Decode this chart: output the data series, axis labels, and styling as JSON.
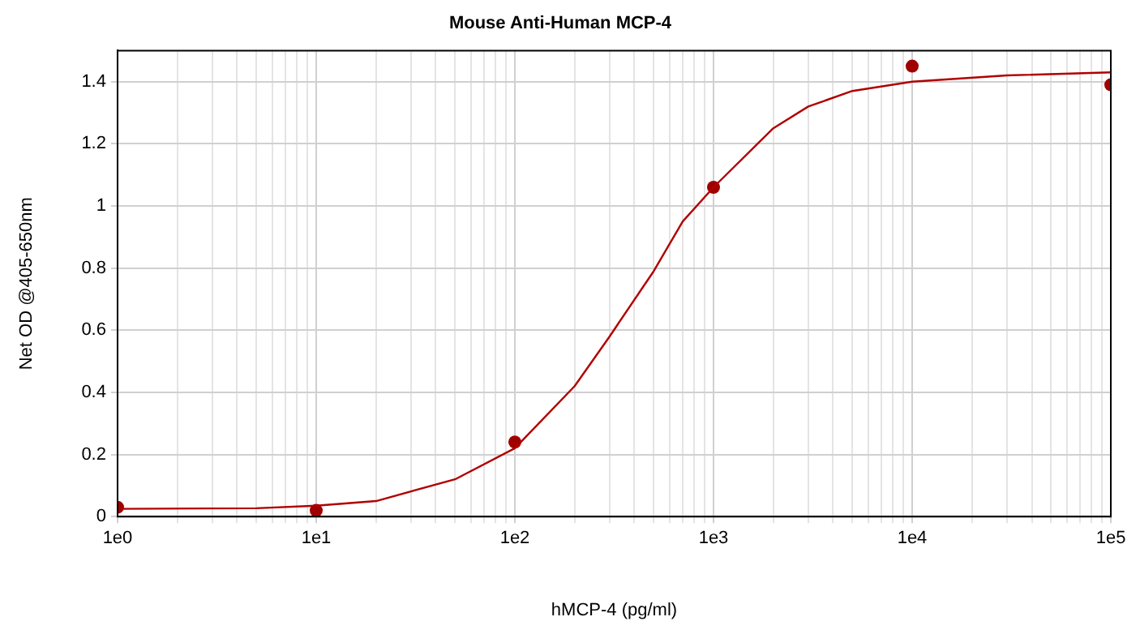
{
  "chart_data": {
    "type": "scatter",
    "title": "Mouse Anti-Human MCP-4",
    "xlabel": "hMCP-4 (pg/ml)",
    "ylabel": "Net OD @405-650nm",
    "log": "x",
    "grid": true,
    "legend": false,
    "xlim": [
      1,
      100000
    ],
    "ylim": [
      0,
      1.5
    ],
    "xticks": [
      {
        "value": 1,
        "label": "1e0"
      },
      {
        "value": 2,
        "label": null
      },
      {
        "value": 3,
        "label": null
      },
      {
        "value": 4,
        "label": null
      },
      {
        "value": 5,
        "label": null
      },
      {
        "value": 6,
        "label": null
      },
      {
        "value": 7,
        "label": null
      },
      {
        "value": 8,
        "label": null
      },
      {
        "value": 9,
        "label": null
      },
      {
        "value": 10,
        "label": "1e1"
      },
      {
        "value": 20,
        "label": null
      },
      {
        "value": 30,
        "label": null
      },
      {
        "value": 40,
        "label": null
      },
      {
        "value": 50,
        "label": null
      },
      {
        "value": 60,
        "label": null
      },
      {
        "value": 70,
        "label": null
      },
      {
        "value": 80,
        "label": null
      },
      {
        "value": 90,
        "label": null
      },
      {
        "value": 100,
        "label": "1e2"
      },
      {
        "value": 200,
        "label": null
      },
      {
        "value": 300,
        "label": null
      },
      {
        "value": 400,
        "label": null
      },
      {
        "value": 500,
        "label": null
      },
      {
        "value": 600,
        "label": null
      },
      {
        "value": 700,
        "label": null
      },
      {
        "value": 800,
        "label": null
      },
      {
        "value": 900,
        "label": null
      },
      {
        "value": 1000,
        "label": "1e3"
      },
      {
        "value": 2000,
        "label": null
      },
      {
        "value": 3000,
        "label": null
      },
      {
        "value": 4000,
        "label": null
      },
      {
        "value": 5000,
        "label": null
      },
      {
        "value": 6000,
        "label": null
      },
      {
        "value": 7000,
        "label": null
      },
      {
        "value": 8000,
        "label": null
      },
      {
        "value": 9000,
        "label": null
      },
      {
        "value": 10000,
        "label": "1e4"
      },
      {
        "value": 20000,
        "label": null
      },
      {
        "value": 30000,
        "label": null
      },
      {
        "value": 40000,
        "label": null
      },
      {
        "value": 50000,
        "label": null
      },
      {
        "value": 60000,
        "label": null
      },
      {
        "value": 70000,
        "label": null
      },
      {
        "value": 80000,
        "label": null
      },
      {
        "value": 90000,
        "label": null
      },
      {
        "value": 100000,
        "label": "1e5"
      }
    ],
    "yticks": [
      0,
      0.2,
      0.4,
      0.6,
      0.8,
      1,
      1.2,
      1.4
    ],
    "series": [
      {
        "type": "line",
        "color": "#b00000",
        "marker": "none",
        "x": [
          1,
          5,
          10,
          20,
          50,
          100,
          200,
          300,
          500,
          700,
          1000,
          2000,
          3000,
          5000,
          10000,
          30000,
          100000
        ],
        "values": [
          0.025,
          0.027,
          0.035,
          0.05,
          0.12,
          0.22,
          0.42,
          0.58,
          0.79,
          0.95,
          1.06,
          1.25,
          1.32,
          1.37,
          1.4,
          1.42,
          1.43
        ]
      },
      {
        "type": "scatter",
        "color": "#a00000",
        "marker": "circle",
        "x": [
          1,
          10,
          100,
          1000,
          10000,
          100000
        ],
        "values": [
          0.03,
          0.02,
          0.24,
          1.06,
          1.45,
          1.39
        ]
      }
    ]
  }
}
